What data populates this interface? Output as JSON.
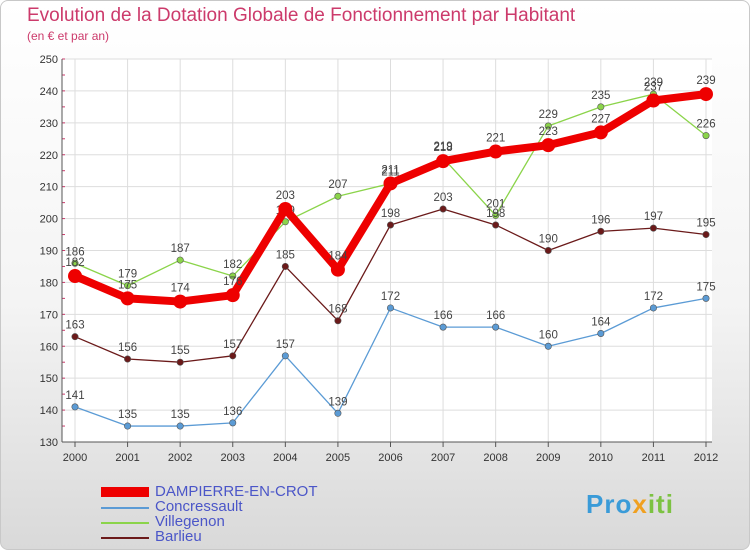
{
  "header": {
    "title": "Evolution de la Dotation Globale de Fonctionnement par Habitant",
    "subtitle": "(en € et par an)"
  },
  "logo": {
    "parts": [
      "Pro",
      "x",
      "iti"
    ]
  },
  "chart_data": {
    "type": "line",
    "categories": [
      "2000",
      "2001",
      "2002",
      "2003",
      "2004",
      "2005",
      "2006",
      "2007",
      "2008",
      "2009",
      "2010",
      "2011",
      "2012"
    ],
    "ylim": [
      130,
      250
    ],
    "yticks": [
      130,
      140,
      150,
      160,
      170,
      180,
      190,
      200,
      210,
      220,
      230,
      240,
      250
    ],
    "grid": true,
    "legend_position": "bottom-left",
    "series": [
      {
        "name": "Concressault",
        "color": "#5b9bd5",
        "values": [
          141,
          135,
          135,
          136,
          157,
          139,
          172,
          166,
          166,
          160,
          164,
          172,
          175
        ]
      },
      {
        "name": "Villegenon",
        "color": "#8bd44a",
        "values": [
          186,
          179,
          187,
          182,
          199,
          207,
          211,
          219,
          201,
          229,
          235,
          239,
          226
        ]
      },
      {
        "name": "Barlieu",
        "color": "#6b1a1a",
        "values": [
          163,
          156,
          155,
          157,
          185,
          168,
          198,
          203,
          198,
          190,
          196,
          197,
          195
        ]
      },
      {
        "name": "DAMPIERRE-EN-CROT",
        "color": "#ee0000",
        "values": [
          182,
          175,
          174,
          176,
          203,
          184,
          211,
          218,
          221,
          223,
          227,
          237,
          239
        ]
      }
    ]
  }
}
